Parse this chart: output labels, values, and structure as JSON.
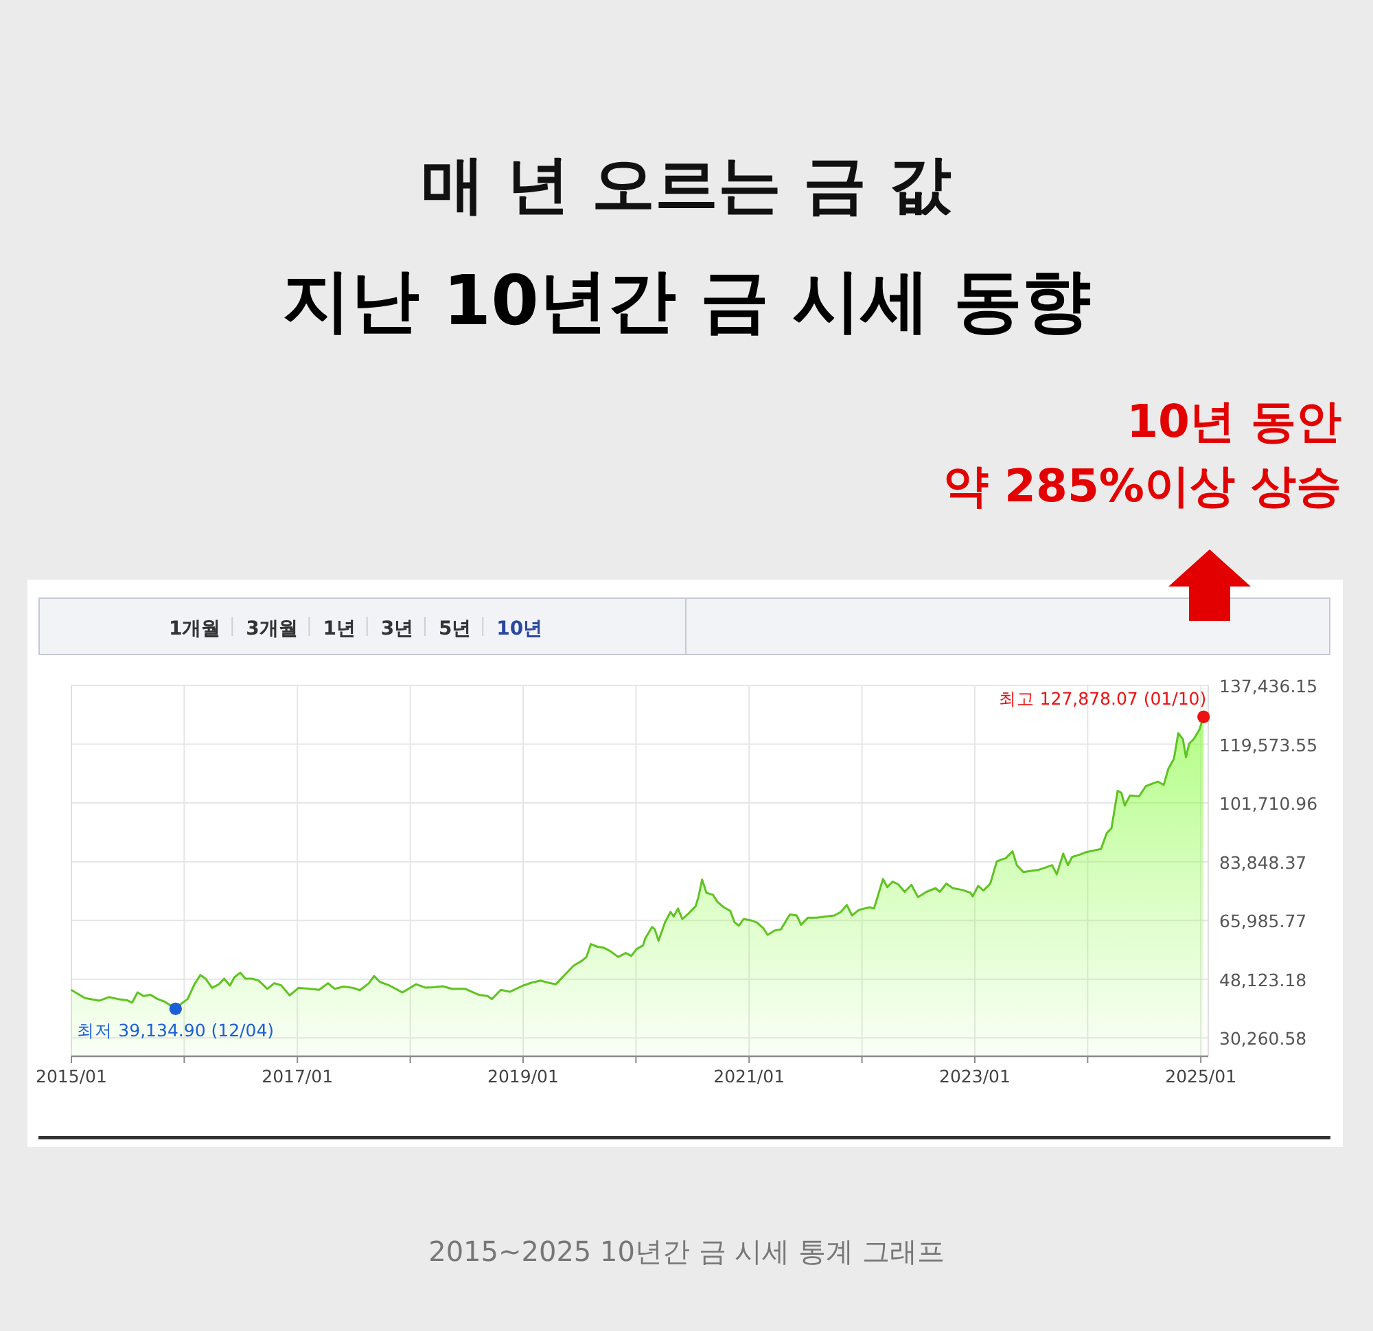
{
  "chart_data": {
    "type": "area",
    "title": "매 년 오르는 금 값",
    "subtitle": "지난 10년간 금 시세 동향",
    "annotations": [
      "10년 동안\n약 285%이상 상승",
      {
        "text": "최저 39,134.90 (12/04)",
        "x": "2015-12-04",
        "y": 39134.9
      },
      {
        "text": "최고 127,878.07 (01/10)",
        "x": "2025-01-10",
        "y": 127878.07
      },
      "1개월",
      "3개월",
      "1년",
      "3년",
      "5년",
      "10년",
      "2015~2025 10년간 금 시세 통계 그래프"
    ],
    "xlim": [
      "2015-01-01",
      "2025-01-25"
    ],
    "xticks": [
      {
        "value": "2015-01-01",
        "label": "2015/01"
      },
      {
        "value": "2016-01-01",
        "label": null
      },
      {
        "value": "2017-01-01",
        "label": "2017/01"
      },
      {
        "value": "2018-01-01",
        "label": null
      },
      {
        "value": "2019-01-01",
        "label": "2019/01"
      },
      {
        "value": "2020-01-01",
        "label": null
      },
      {
        "value": "2021-01-01",
        "label": "2021/01"
      },
      {
        "value": "2022-01-01",
        "label": null
      },
      {
        "value": "2023-01-01",
        "label": "2023/01"
      },
      {
        "value": "2024-01-01",
        "label": null
      },
      {
        "value": "2025-01-01",
        "label": "2025/01"
      }
    ],
    "ylim": [
      24700,
      137436.15
    ],
    "yticks": [
      {
        "value": 30260.58,
        "label": "30,260.58"
      },
      {
        "value": 48123.18,
        "label": "48,123.18"
      },
      {
        "value": 65985.77,
        "label": "65,985.77"
      },
      {
        "value": 83848.37,
        "label": "83,848.37"
      },
      {
        "value": 101710.96,
        "label": "101,710.96"
      },
      {
        "value": 119573.55,
        "label": "119,573.55"
      },
      {
        "value": 137436.15,
        "label": "137,436.15"
      }
    ],
    "grid": true,
    "series": [
      {
        "type": "area",
        "color": "#5ec41f",
        "x": [
          "2015-01-02",
          "2015-02-14",
          "2015-04-01",
          "2015-05-02",
          "2015-06-01",
          "2015-07-01",
          "2015-07-16",
          "2015-08-03",
          "2015-08-23",
          "2015-09-14",
          "2015-10-07",
          "2015-10-30",
          "2015-12-04",
          "2015-12-21",
          "2016-01-12",
          "2016-02-03",
          "2016-02-22",
          "2016-03-10",
          "2016-03-31",
          "2016-04-22",
          "2016-05-09",
          "2016-05-28",
          "2016-06-11",
          "2016-06-30",
          "2016-07-17",
          "2016-08-08",
          "2016-08-29",
          "2016-09-26",
          "2016-10-18",
          "2016-11-09",
          "2016-12-07",
          "2017-01-05",
          "2017-02-11",
          "2017-03-12",
          "2017-04-10",
          "2017-05-02",
          "2017-05-31",
          "2017-06-30",
          "2017-07-22",
          "2017-08-20",
          "2017-09-06",
          "2017-09-25",
          "2017-10-24",
          "2017-12-07",
          "2018-01-20",
          "2018-02-18",
          "2018-03-19",
          "2018-04-16",
          "2018-05-15",
          "2018-06-28",
          "2018-08-10",
          "2018-09-08",
          "2018-09-22",
          "2018-10-21",
          "2018-11-19",
          "2019-01-01",
          "2019-01-29",
          "2019-02-27",
          "2019-03-27",
          "2019-04-17",
          "2019-05-15",
          "2019-06-13",
          "2019-07-11",
          "2019-07-25",
          "2019-08-08",
          "2019-08-29",
          "2019-09-19",
          "2019-10-11",
          "2019-11-05",
          "2019-11-29",
          "2019-12-17",
          "2020-01-03",
          "2020-01-24",
          "2020-01-31",
          "2020-02-22",
          "2020-03-02",
          "2020-03-14",
          "2020-04-04",
          "2020-04-22",
          "2020-05-02",
          "2020-05-16",
          "2020-05-30",
          "2020-06-20",
          "2020-07-12",
          "2020-07-21",
          "2020-08-02",
          "2020-08-16",
          "2020-09-06",
          "2020-09-20",
          "2020-10-11",
          "2020-11-01",
          "2020-11-15",
          "2020-11-29",
          "2020-12-14",
          "2021-01-04",
          "2021-01-26",
          "2021-02-16",
          "2021-03-02",
          "2021-03-24",
          "2021-04-14",
          "2021-05-13",
          "2021-06-04",
          "2021-06-18",
          "2021-07-10",
          "2021-08-08",
          "2021-09-05",
          "2021-10-04",
          "2021-10-25",
          "2021-11-13",
          "2021-11-30",
          "2021-12-22",
          "2022-01-26",
          "2022-02-09",
          "2022-03-10",
          "2022-03-24",
          "2022-04-10",
          "2022-04-28",
          "2022-05-19",
          "2022-06-10",
          "2022-07-01",
          "2022-07-29",
          "2022-08-27",
          "2022-09-10",
          "2022-10-01",
          "2022-10-22",
          "2022-11-20",
          "2022-12-18",
          "2022-12-25",
          "2023-01-12",
          "2023-01-29",
          "2023-02-20",
          "2023-03-13",
          "2023-03-28",
          "2023-04-11",
          "2023-05-03",
          "2023-05-17",
          "2023-06-07",
          "2023-07-06",
          "2023-07-27",
          "2023-08-18",
          "2023-09-08",
          "2023-09-23",
          "2023-10-14",
          "2023-10-29",
          "2023-11-12",
          "2023-12-03",
          "2023-12-25",
          "2024-01-23",
          "2024-02-13",
          "2024-03-03",
          "2024-03-18",
          "2024-04-07",
          "2024-04-19",
          "2024-04-30",
          "2024-05-17",
          "2024-06-15",
          "2024-07-07",
          "2024-07-29",
          "2024-08-15",
          "2024-09-03",
          "2024-09-18",
          "2024-10-06",
          "2024-10-20",
          "2024-11-04",
          "2024-11-14",
          "2024-11-24",
          "2024-12-09",
          "2024-12-27",
          "2025-01-10"
        ],
        "values": [
          44800,
          42400,
          41600,
          42700,
          42100,
          41700,
          41000,
          44100,
          43000,
          43400,
          42100,
          41300,
          39100,
          40600,
          42100,
          46600,
          49400,
          48300,
          45500,
          46600,
          48300,
          46200,
          48700,
          50100,
          48300,
          48300,
          47700,
          45200,
          46900,
          46300,
          43200,
          45500,
          45200,
          44900,
          46900,
          45200,
          45900,
          45500,
          44800,
          46900,
          49100,
          47300,
          46300,
          44100,
          46600,
          45600,
          45700,
          46000,
          45200,
          45200,
          43400,
          43000,
          42100,
          44900,
          44300,
          46200,
          47100,
          47700,
          47000,
          46600,
          49400,
          52200,
          53800,
          54900,
          58800,
          58000,
          57700,
          56600,
          54900,
          56100,
          55200,
          57300,
          58400,
          60500,
          64000,
          63300,
          59800,
          65400,
          68600,
          67200,
          69600,
          66400,
          68200,
          70300,
          73100,
          78400,
          74400,
          73800,
          71700,
          70000,
          68900,
          65400,
          64400,
          66400,
          66100,
          65400,
          63600,
          61600,
          62900,
          63300,
          67800,
          67500,
          64700,
          66800,
          66800,
          67200,
          67500,
          68600,
          70700,
          67500,
          69200,
          70000,
          69600,
          78600,
          76100,
          77800,
          77000,
          74700,
          76800,
          73100,
          74700,
          75800,
          74700,
          77200,
          75800,
          75300,
          74400,
          73300,
          76500,
          75100,
          77200,
          83900,
          84500,
          84900,
          87000,
          82800,
          80700,
          81100,
          81400,
          82100,
          82800,
          80000,
          86300,
          82800,
          85300,
          85900,
          86700,
          87300,
          87700,
          92600,
          94000,
          105400,
          104800,
          100900,
          104000,
          103700,
          106800,
          107600,
          108200,
          107200,
          112100,
          115100,
          122900,
          121100,
          115600,
          119700,
          121100,
          123900,
          127900
        ]
      },
      {
        "type": "scatter",
        "marker": "circle",
        "x": [
          "2015-12-04",
          "2025-01-10"
        ],
        "values": [
          39134.9,
          127878.07
        ],
        "colors": [
          "#1b5fd8",
          "#ee1111"
        ]
      }
    ]
  }
}
